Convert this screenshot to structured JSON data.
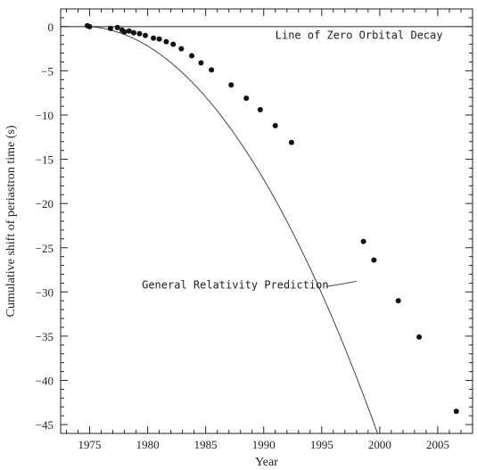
{
  "chart_data": {
    "type": "scatter",
    "xlabel": "Year",
    "ylabel": "Cumulative shift of periastron time (s)",
    "xlim": [
      1972.5,
      2008
    ],
    "ylim": [
      -46,
      2
    ],
    "x_ticks": [
      1975,
      1980,
      1985,
      1990,
      1995,
      2000,
      2005
    ],
    "y_ticks": [
      0,
      -5,
      -10,
      -15,
      -20,
      -25,
      -30,
      -35,
      -40,
      -45
    ],
    "grid": false,
    "series": [
      {
        "role": "observations",
        "points": [
          {
            "x": 1974.8,
            "y": 0.1
          },
          {
            "x": 1975.0,
            "y": 0.0
          },
          {
            "x": 1976.8,
            "y": -0.2
          },
          {
            "x": 1977.4,
            "y": -0.1
          },
          {
            "x": 1977.8,
            "y": -0.4
          },
          {
            "x": 1978.0,
            "y": -0.6
          },
          {
            "x": 1978.4,
            "y": -0.5
          },
          {
            "x": 1978.8,
            "y": -0.7
          },
          {
            "x": 1979.3,
            "y": -0.8
          },
          {
            "x": 1979.8,
            "y": -1.0
          },
          {
            "x": 1980.5,
            "y": -1.3
          },
          {
            "x": 1981.0,
            "y": -1.4
          },
          {
            "x": 1981.6,
            "y": -1.7
          },
          {
            "x": 1982.2,
            "y": -2.0
          },
          {
            "x": 1982.9,
            "y": -2.5
          },
          {
            "x": 1983.8,
            "y": -3.3
          },
          {
            "x": 1984.6,
            "y": -4.1
          },
          {
            "x": 1985.5,
            "y": -4.9
          },
          {
            "x": 1987.2,
            "y": -6.6
          },
          {
            "x": 1988.5,
            "y": -8.1
          },
          {
            "x": 1989.7,
            "y": -9.4
          },
          {
            "x": 1991.0,
            "y": -11.2
          },
          {
            "x": 1992.4,
            "y": -13.1
          },
          {
            "x": 1998.6,
            "y": -24.3
          },
          {
            "x": 1999.5,
            "y": -26.4
          },
          {
            "x": 2001.6,
            "y": -31.0
          },
          {
            "x": 2003.4,
            "y": -35.1
          },
          {
            "x": 2006.6,
            "y": -43.5
          }
        ]
      },
      {
        "role": "prediction-curve",
        "function": "-0.0715*(t-1974.8)^2 - 0.05*(t-1974.8)",
        "x_start": 1974.8,
        "x_end": 2007.5
      },
      {
        "role": "zero-line",
        "y": 0
      }
    ],
    "annotations": [
      {
        "text": "Line of Zero Orbital Decay",
        "x": 1991.0,
        "y": -1.4
      },
      {
        "text": "General Relativity Prediction",
        "x": 1979.5,
        "y": -29.6,
        "arrow_from": [
          1995.4,
          -29.4
        ],
        "arrow_to": [
          1998.0,
          -28.8
        ]
      }
    ]
  }
}
